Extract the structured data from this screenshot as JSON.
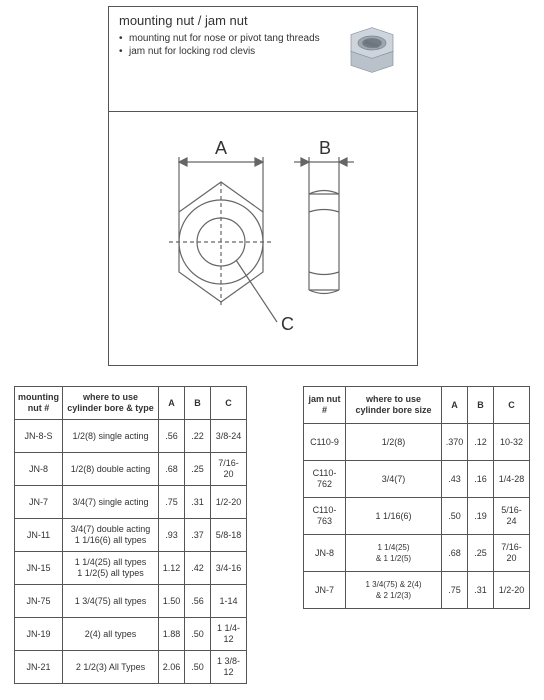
{
  "header": {
    "title": "mounting nut / jam nut",
    "bullets": [
      "mounting nut for nose or pivot tang threads",
      "jam nut for locking rod clevis"
    ]
  },
  "diagram": {
    "labels": {
      "A": "A",
      "B": "B",
      "C": "C"
    },
    "stroke": "#666666",
    "stroke_width": 1.2,
    "text_color": "#333333",
    "text_fontsize": 16
  },
  "nut_image": {
    "body_fill": "#cdd4dc",
    "body_stroke": "#8a939c",
    "thread_fill": "#b0b8c0"
  },
  "table1": {
    "headers": [
      "mounting nut #",
      "where to use cylinder bore & type",
      "A",
      "B",
      "C"
    ],
    "rows": [
      [
        "JN-8-S",
        "1/2(8) single acting",
        ".56",
        ".22",
        "3/8-24"
      ],
      [
        "JN-8",
        "1/2(8) double acting",
        ".68",
        ".25",
        "7/16-20"
      ],
      [
        "JN-7",
        "3/4(7) single acting",
        ".75",
        ".31",
        "1/2-20"
      ],
      [
        "JN-11",
        "3/4(7)  double acting\n1 1/16(6) all types",
        ".93",
        ".37",
        "5/8-18"
      ],
      [
        "JN-15",
        "1 1/4(25) all types\n1 1/2(5) all types",
        "1.12",
        ".42",
        "3/4-16"
      ],
      [
        "JN-75",
        "1 3/4(75) all types",
        "1.50",
        ".56",
        "1-14"
      ],
      [
        "JN-19",
        "2(4) all types",
        "1.88",
        ".50",
        "1 1/4-12"
      ],
      [
        "JN-21",
        "2 1/2(3) All Types",
        "2.06",
        ".50",
        "1 3/8-12"
      ]
    ]
  },
  "table2": {
    "headers": [
      "jam nut #",
      "where to use cylinder bore size",
      "A",
      "B",
      "C"
    ],
    "rows": [
      [
        "C110-9",
        "1/2(8)",
        ".370",
        ".12",
        "10-32"
      ],
      [
        "C110-762",
        "3/4(7)",
        ".43",
        ".16",
        "1/4-28"
      ],
      [
        "C110-763",
        "1 1/16(6)",
        ".50",
        ".19",
        "5/16-24"
      ],
      [
        "JN-8",
        "1 1/4(25)\n& 1 1/2(5)",
        ".68",
        ".25",
        "7/16-20"
      ],
      [
        "JN-7",
        "1 3/4(75) & 2(4)\n& 2 1/2(3)",
        ".75",
        ".31",
        "1/2-20"
      ]
    ]
  }
}
